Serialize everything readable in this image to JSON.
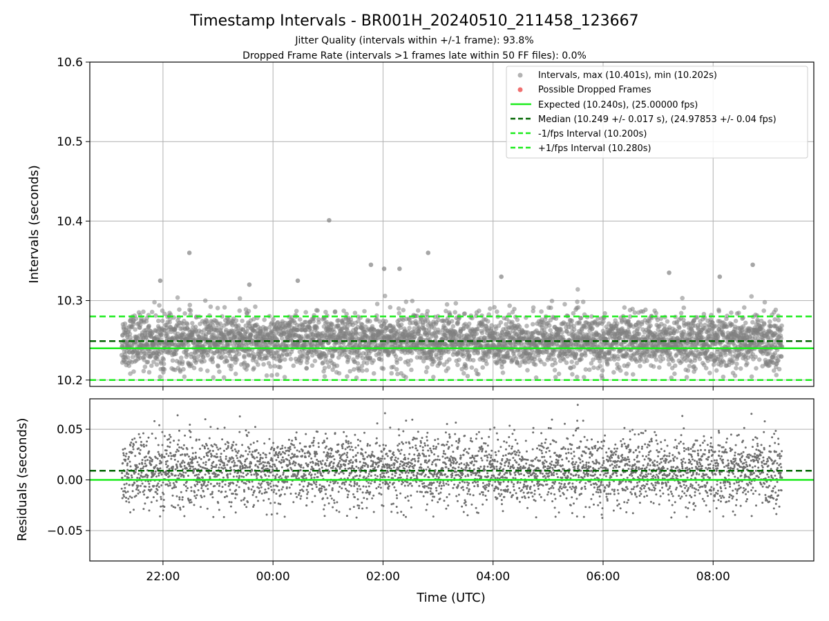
{
  "chart_data": [
    {
      "type": "scatter",
      "title": "Timestamp Intervals - BR001H_20240510_211458_123667",
      "subtitle_lines": [
        "Jitter Quality (intervals within +/-1 frame): 93.8%",
        "Dropped Frame Rate (intervals >1 frames late within 50 FF files): 0.0%"
      ],
      "ylabel": "Intervals (seconds)",
      "ylim": [
        10.192,
        10.6
      ],
      "yticks": [
        10.2,
        10.3,
        10.4,
        10.5,
        10.6
      ],
      "ytick_labels": [
        "10.2",
        "10.3",
        "10.4",
        "10.5",
        "10.6"
      ],
      "grid": true,
      "legend_position": "top-right",
      "legend": [
        {
          "label": "Intervals, max (10.401s), min (10.202s)",
          "marker": "circle",
          "color": "#808080"
        },
        {
          "label": "Possible Dropped Frames",
          "marker": "circle",
          "color": "#f07070"
        },
        {
          "label": "Expected (10.240s), (25.00000 fps)",
          "line": "solid",
          "color": "#1aeb1a"
        },
        {
          "label": "Median (10.249 +/- 0.017 s), (24.97853 +/- 0.04 fps)",
          "line": "dashed",
          "color": "#006400"
        },
        {
          "label": "-1/fps Interval (10.200s)",
          "line": "dashed",
          "color": "#1aeb1a"
        },
        {
          "label": "+1/fps Interval (10.280s)",
          "line": "dashed",
          "color": "#1aeb1a"
        }
      ],
      "reference_lines": {
        "expected": 10.24,
        "median": 10.249,
        "minus_1_fps": 10.2,
        "plus_1_fps": 10.28
      },
      "series": [
        {
          "name": "Intervals",
          "x_time_range_hours_utc": [
            21.25,
            33.25
          ],
          "point_count_approx": 4000,
          "y_center": 10.249,
          "y_spread_std": 0.017,
          "max": 10.401,
          "min": 10.202,
          "notable_points": [
            {
              "x_hours": 25.02,
              "y": 10.401
            },
            {
              "x_hours": 22.48,
              "y": 10.36
            },
            {
              "x_hours": 26.82,
              "y": 10.36
            },
            {
              "x_hours": 25.78,
              "y": 10.345
            },
            {
              "x_hours": 26.02,
              "y": 10.34
            },
            {
              "x_hours": 26.3,
              "y": 10.34
            },
            {
              "x_hours": 32.72,
              "y": 10.345
            },
            {
              "x_hours": 32.12,
              "y": 10.33
            },
            {
              "x_hours": 31.2,
              "y": 10.335
            },
            {
              "x_hours": 21.95,
              "y": 10.325
            },
            {
              "x_hours": 24.45,
              "y": 10.325
            },
            {
              "x_hours": 23.57,
              "y": 10.32
            },
            {
              "x_hours": 28.15,
              "y": 10.33
            }
          ]
        },
        {
          "name": "Possible Dropped Frames",
          "count": 0
        }
      ]
    },
    {
      "type": "scatter",
      "ylabel": "Residuals (seconds)",
      "xlabel": "Time (UTC)",
      "xticks_hours": [
        22,
        24,
        26,
        28,
        30,
        32
      ],
      "xtick_labels": [
        "22:00",
        "00:00",
        "02:00",
        "04:00",
        "06:00",
        "08:00"
      ],
      "xlim_hours": [
        20.67,
        33.83
      ],
      "ylim": [
        -0.08,
        0.08
      ],
      "yticks": [
        -0.05,
        0.0,
        0.05
      ],
      "ytick_labels": [
        "−0.05",
        "0.00",
        "0.05"
      ],
      "grid": true,
      "reference_lines": {
        "zero": 0.0,
        "median_offset": 0.009
      },
      "series": [
        {
          "name": "Residuals",
          "y_center": 0.009,
          "y_spread_std": 0.017,
          "point_count_approx": 4000
        }
      ]
    }
  ],
  "colors": {
    "points": "#808080",
    "expected_line": "#1aeb1a",
    "median_line": "#006400",
    "dropped": "#f07070",
    "grid": "#b0b0b0"
  }
}
